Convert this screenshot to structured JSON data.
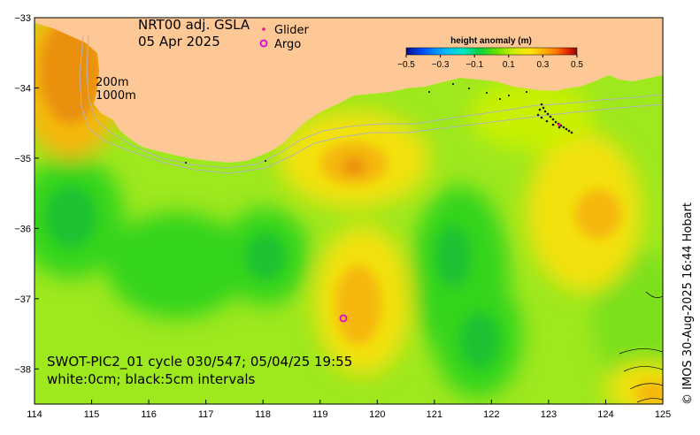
{
  "title_line1": "NRT00 adj. GSLA",
  "title_line2": "05 Apr 2025",
  "legend": {
    "glider_label": "Glider",
    "argo_label": "Argo",
    "glider_color": "#e8157a",
    "argo_color": "#e000e0"
  },
  "colorbar": {
    "title": "height anomaly (m)",
    "ticks": [
      "−0.5",
      "−0.3",
      "−0.1",
      "0.1",
      "0.3",
      "0.5"
    ],
    "colors": [
      "#0b0b8c",
      "#0050ff",
      "#00b4ff",
      "#00e6c8",
      "#00d24a",
      "#5ee000",
      "#c8f000",
      "#ffe600",
      "#ffb400",
      "#ff7800",
      "#e02000",
      "#8c0a0a"
    ]
  },
  "depth_labels": [
    "200m",
    "1000m"
  ],
  "annotation_line1": "SWOT-PIC2_01 cycle 030/547; 05/04/25 19:55",
  "annotation_line2": "white:0cm; black:5cm intervals",
  "credit": "© IMOS 30-Aug-2025 16:44 Hobart",
  "x_ticks": [
    "114",
    "115",
    "116",
    "117",
    "118",
    "119",
    "120",
    "121",
    "122",
    "123",
    "124",
    "125"
  ],
  "y_ticks": [
    "−33",
    "−34",
    "−35",
    "−36",
    "−37",
    "−38"
  ],
  "colors": {
    "land": "#fdc896",
    "sea_base": "#9ee81e",
    "green_low": "#35d41d",
    "green_lower": "#1ec230",
    "yellow": "#f3e10b",
    "orange": "#f5b70a",
    "orange_dark": "#ea900a",
    "isobath": "#b4b4b4"
  },
  "chart_data": {
    "type": "map",
    "x_range": [
      114,
      125
    ],
    "y_range": [
      -38.5,
      -33
    ],
    "xlabel": "",
    "ylabel": "",
    "grid": false,
    "argo": [
      {
        "lon": 119.4,
        "lat": -37.3
      }
    ]
  }
}
